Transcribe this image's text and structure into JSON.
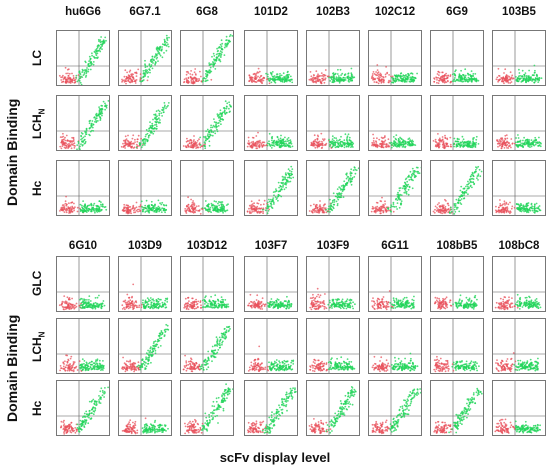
{
  "axis_titles": {
    "y": "Domain Binding",
    "x": "scFv display level"
  },
  "colors": {
    "negative_population": "#e8505b",
    "positive_population": "#22d45a",
    "gate_line": "#555555"
  },
  "top_block": {
    "columns": [
      "hu6G6",
      "6G7.1",
      "6G8",
      "101D2",
      "102B3",
      "102C12",
      "6G9",
      "103B5"
    ],
    "rows": [
      {
        "label": "LC",
        "sub": ""
      },
      {
        "label": "LCH",
        "sub": "N"
      },
      {
        "label": "Hc",
        "sub": ""
      }
    ],
    "binding_pattern": [
      [
        1,
        1,
        1,
        0,
        0,
        0,
        0,
        0
      ],
      [
        1,
        1,
        1,
        0,
        0,
        0,
        0,
        0
      ],
      [
        0,
        0,
        0,
        1,
        1,
        1,
        1,
        0
      ]
    ]
  },
  "bottom_block": {
    "columns": [
      "6G10",
      "103D9",
      "103D12",
      "103F7",
      "103F9",
      "6G11",
      "108bB5",
      "108bC8"
    ],
    "rows": [
      {
        "label": "GLC",
        "sub": ""
      },
      {
        "label": "LCH",
        "sub": "N"
      },
      {
        "label": "Hc",
        "sub": ""
      }
    ],
    "binding_pattern": [
      [
        0,
        0,
        0,
        0,
        0,
        0,
        0,
        0
      ],
      [
        0,
        1,
        1,
        0,
        0,
        0,
        0,
        0
      ],
      [
        1,
        0,
        1,
        1,
        1,
        1,
        1,
        0
      ]
    ]
  }
}
